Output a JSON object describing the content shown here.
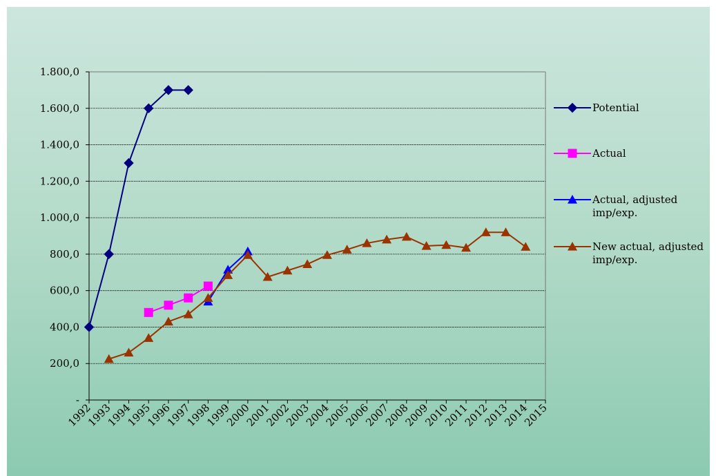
{
  "chart_data": {
    "type": "line",
    "title": "",
    "xlabel": "",
    "ylabel": "",
    "x": [
      "1992",
      "1993",
      "1994",
      "1995",
      "1996",
      "1997",
      "1998",
      "1999",
      "2000",
      "2001",
      "2002",
      "2003",
      "2004",
      "2005",
      "2006",
      "2007",
      "2008",
      "2009",
      "2010",
      "2011",
      "2012",
      "2013",
      "2014",
      "2015"
    ],
    "ylim": [
      0,
      1800
    ],
    "yticks": [
      0,
      200,
      400,
      600,
      800,
      1000,
      1200,
      1400,
      1600,
      1800
    ],
    "ytick_labels": [
      "-",
      "200,0",
      "400,0",
      "600,0",
      "800,0",
      "1.000,0",
      "1.200,0",
      "1.400,0",
      "1.600,0",
      "1.800,0"
    ],
    "grid": true,
    "legend_position": "right",
    "series": [
      {
        "name": "Potential",
        "legend_lines": [
          "Potential"
        ],
        "color": "#00007f",
        "marker": "diamond",
        "values": [
          400,
          800,
          1300,
          1600,
          1700,
          1700,
          null,
          null,
          null,
          null,
          null,
          null,
          null,
          null,
          null,
          null,
          null,
          null,
          null,
          null,
          null,
          null,
          null,
          null
        ]
      },
      {
        "name": "Actual",
        "legend_lines": [
          "Actual"
        ],
        "color": "#ff00ff",
        "marker": "square",
        "values": [
          null,
          null,
          null,
          480,
          520,
          560,
          625,
          null,
          null,
          null,
          null,
          null,
          null,
          null,
          null,
          null,
          null,
          null,
          null,
          null,
          null,
          null,
          null,
          null
        ]
      },
      {
        "name": "Actual, adjusted imp/exp.",
        "legend_lines": [
          "Actual, adjusted",
          "imp/exp."
        ],
        "color": "#0000ff",
        "marker": "triangle",
        "values": [
          null,
          null,
          null,
          null,
          null,
          null,
          540,
          715,
          815,
          null,
          null,
          null,
          null,
          null,
          null,
          null,
          null,
          null,
          null,
          null,
          null,
          null,
          null,
          null
        ]
      },
      {
        "name": "New actual, adjusted imp/exp.",
        "legend_lines": [
          "New actual, adjusted",
          "imp/exp."
        ],
        "color": "#993300",
        "marker": "triangle",
        "values": [
          null,
          225,
          260,
          340,
          430,
          470,
          560,
          685,
          795,
          675,
          710,
          745,
          795,
          825,
          860,
          880,
          895,
          845,
          850,
          835,
          920,
          920,
          840,
          null
        ]
      }
    ]
  }
}
